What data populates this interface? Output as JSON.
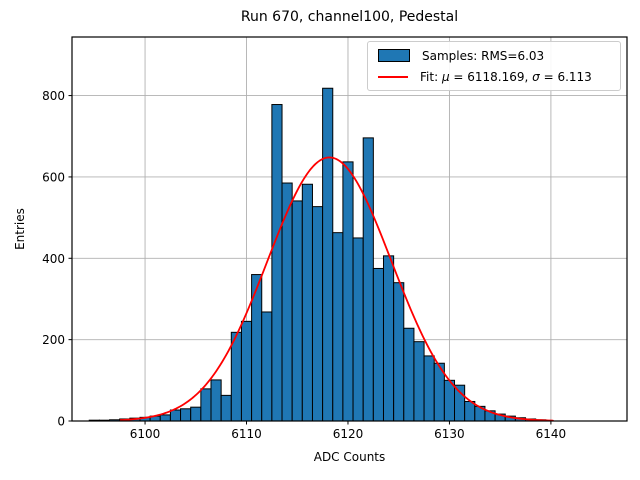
{
  "figure": {
    "title": "Run 670, channel100, Pedestal"
  },
  "axes": {
    "xlabel": "ADC Counts",
    "ylabel": "Entries"
  },
  "legend": {
    "position": "upper right",
    "samples_label": "Samples: RMS=6.03",
    "fit": {
      "pre": "Fit: ",
      "mu_sym": "μ",
      "mu_eq": " = 6118.169, ",
      "sigma_sym": "σ",
      "sigma_eq": " = 6.113"
    },
    "fit_label_text": "Fit: μ = 6118.169, σ = 6.113"
  },
  "colors": {
    "bar_fill": "#1f77b4",
    "bar_edge": "#000000",
    "fit_line": "#ff0000",
    "grid": "#b0b0b0",
    "spine": "#000000",
    "legend_border": "#cccccc"
  },
  "chart_data": {
    "type": "bar",
    "subtype": "histogram",
    "title": "Run 670, channel100, Pedestal",
    "xlabel": "ADC Counts",
    "ylabel": "Entries",
    "xlim": [
      6092.8,
      6147.5
    ],
    "ylim": [
      0,
      944
    ],
    "x_ticks": [
      6100,
      6110,
      6120,
      6130,
      6140
    ],
    "y_ticks": [
      0,
      200,
      400,
      600,
      800
    ],
    "grid": true,
    "legend_position": "upper right",
    "histogram": {
      "bin_width": 1,
      "bin_centers_start": 6095,
      "counts": [
        2,
        2,
        3,
        5,
        7,
        9,
        12,
        15,
        27,
        30,
        34,
        79,
        101,
        63,
        218,
        245,
        360,
        268,
        778,
        585,
        541,
        582,
        527,
        818,
        463,
        637,
        450,
        696,
        375,
        406,
        340,
        228,
        195,
        160,
        142,
        100,
        88,
        48,
        36,
        25,
        17,
        12,
        8,
        5,
        3
      ]
    },
    "fit_curve": {
      "type": "gaussian",
      "mu": 6118.169,
      "sigma": 6.113,
      "amplitude": 648,
      "x_start": 6097.6,
      "x_end": 6140.2
    },
    "stats": {
      "samples_rms": 6.03,
      "fit_mu": 6118.169,
      "fit_sigma": 6.113
    }
  }
}
